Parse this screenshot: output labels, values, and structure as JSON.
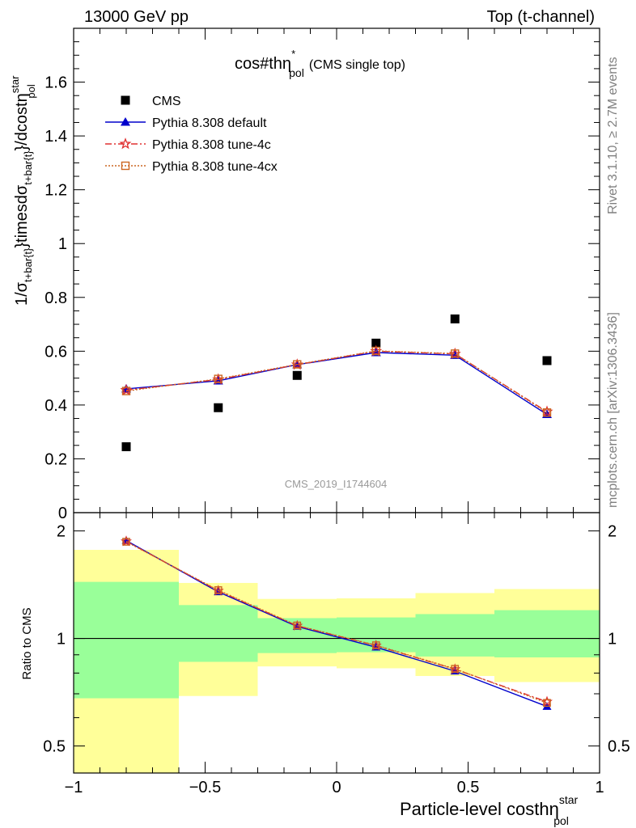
{
  "header": {
    "left": "13000 GeV pp",
    "right": "Top (t-channel)"
  },
  "side_labels": {
    "rivet": "Rivet 3.1.10, ≥ 2.7M events",
    "mcplots": "mcplots.cern.ch [arXiv:1306.3436]"
  },
  "plot_title": {
    "main": "cos#thη",
    "sup": "*",
    "sub": "pol",
    "suffix": "(CMS single top)"
  },
  "watermark": "CMS_2019_I1744604",
  "ratio_ylabel": "Ratio to CMS",
  "chart_data": [
    {
      "type": "line",
      "panel": "main",
      "ylabel": "1/σ_{t+bar{t}}timesdσ_{t+bar{t}}/dcostη^{star}_{pol}",
      "ylabel_parts": {
        "p1": "1/σ",
        "s1": "t+bar{t}",
        "p2": "}timesdσ",
        "s2": "t+bar{t}",
        "p3": "}/dcostη",
        "sup3": "star",
        "s3": "pol"
      },
      "xlabel_parts": {
        "main": "Particle-level costhη",
        "sup": "star",
        "sub": "pol"
      },
      "xlim": [
        -1,
        1
      ],
      "ylim": [
        0,
        1.8
      ],
      "yticks": [
        0,
        0.2,
        0.4,
        0.6,
        0.8,
        1,
        1.2,
        1.4,
        1.6
      ],
      "ytick_labels": [
        "0",
        "0.2",
        "0.4",
        "0.6",
        "0.8",
        "1",
        "1.2",
        "1.4",
        "1.6"
      ],
      "x": [
        -0.8,
        -0.45,
        -0.15,
        0.15,
        0.45,
        0.8
      ],
      "bin_edges": [
        -1,
        -0.6,
        -0.3,
        0,
        0.3,
        0.6,
        1
      ],
      "legend_position": "top-left",
      "series": [
        {
          "name": "CMS",
          "style": "data",
          "color": "#000000",
          "values": [
            0.245,
            0.39,
            0.51,
            0.63,
            0.72,
            0.565
          ]
        },
        {
          "name": "Pythia 8.308 default",
          "style": "solid",
          "marker": "triangle",
          "color": "#0000cc",
          "values": [
            0.46,
            0.49,
            0.55,
            0.595,
            0.585,
            0.365
          ]
        },
        {
          "name": "Pythia 8.308 tune-4c",
          "style": "dashdot",
          "marker": "star",
          "color": "#e03030",
          "values": [
            0.455,
            0.495,
            0.55,
            0.6,
            0.59,
            0.375
          ]
        },
        {
          "name": "Pythia 8.308 tune-4cx",
          "style": "dotted",
          "marker": "square-open",
          "color": "#cc6622",
          "values": [
            0.452,
            0.497,
            0.551,
            0.601,
            0.591,
            0.372
          ]
        }
      ]
    },
    {
      "type": "line",
      "panel": "ratio",
      "ylabel": "Ratio to CMS",
      "xlim": [
        -1,
        1
      ],
      "ylim": [
        0.42,
        2.25
      ],
      "xticks": [
        -1,
        -0.5,
        0,
        0.5,
        1
      ],
      "xtick_labels": [
        "−1",
        "−0.5",
        "0",
        "0.5",
        "1"
      ],
      "yticks": [
        0.5,
        1,
        2
      ],
      "ytick_labels": [
        "0.5",
        "1",
        "2"
      ],
      "bin_edges": [
        -1,
        -0.6,
        -0.3,
        0,
        0.3,
        0.6,
        1
      ],
      "bands": {
        "inner": {
          "color": "#99ff99",
          "lo": [
            0.68,
            0.86,
            0.91,
            0.915,
            0.89,
            0.885
          ],
          "hi": [
            1.44,
            1.24,
            1.14,
            1.145,
            1.17,
            1.2
          ]
        },
        "outer": {
          "color": "#ffff99",
          "lo": [
            0.35,
            0.69,
            0.835,
            0.825,
            0.785,
            0.755
          ],
          "hi": [
            1.77,
            1.43,
            1.29,
            1.295,
            1.34,
            1.375
          ]
        }
      },
      "series": [
        {
          "name": "Pythia 8.308 default",
          "color": "#0000cc",
          "values": [
            1.88,
            1.35,
            1.08,
            0.945,
            0.81,
            0.645
          ]
        },
        {
          "name": "Pythia 8.308 tune-4c",
          "color": "#e03030",
          "values": [
            1.87,
            1.36,
            1.085,
            0.955,
            0.82,
            0.665
          ]
        },
        {
          "name": "Pythia 8.308 tune-4cx",
          "color": "#cc6622",
          "values": [
            1.865,
            1.365,
            1.087,
            0.957,
            0.822,
            0.66
          ]
        }
      ]
    }
  ]
}
